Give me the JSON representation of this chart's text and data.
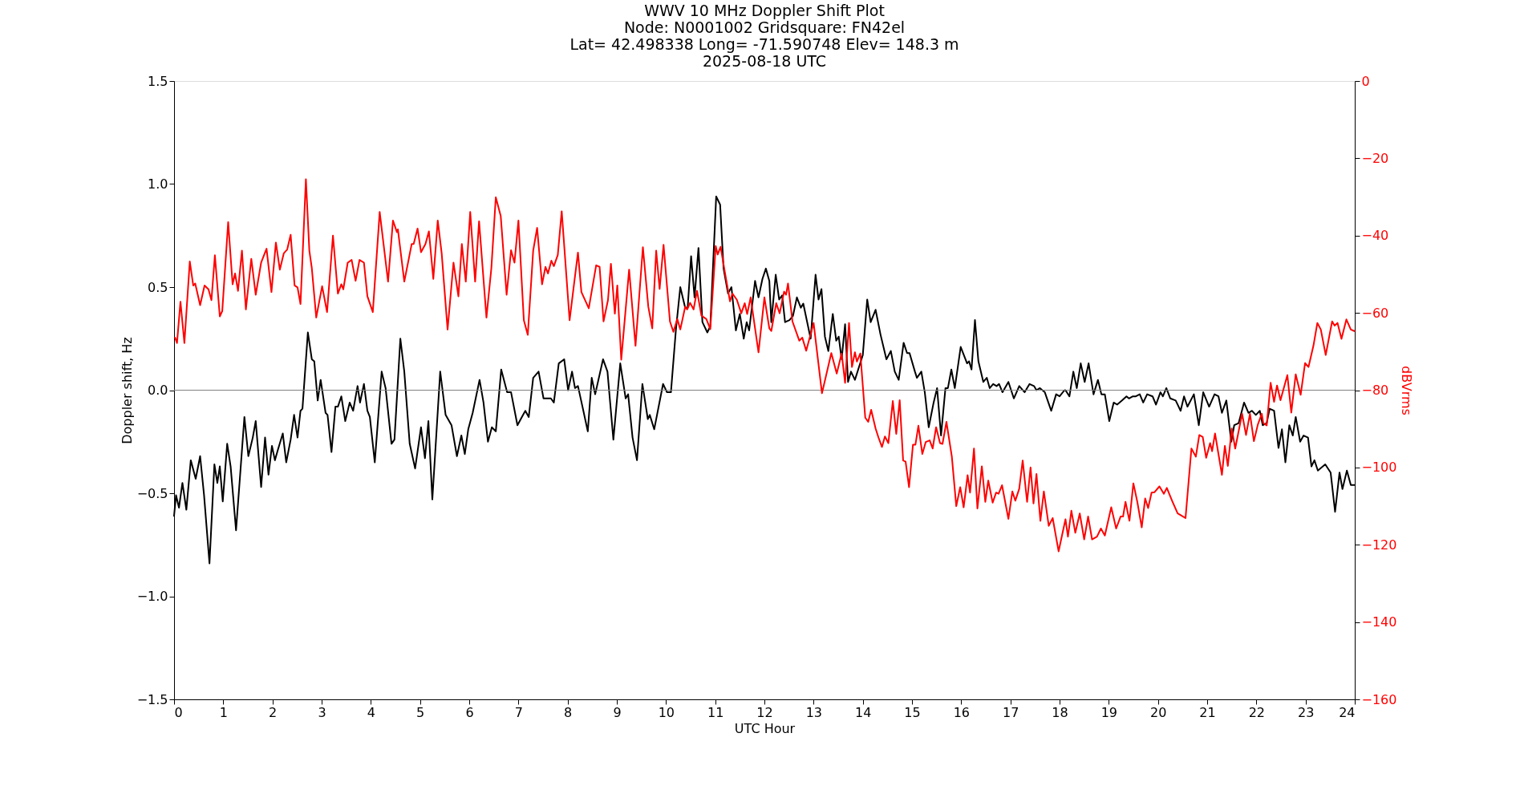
{
  "chart_data": {
    "type": "line",
    "title": "WWV 10 MHz Doppler Shift Plot\nNode:  N0001002     Gridsquare:  FN42el\nLat= 42.498338    Long= -71.590748    Elev= 148.3 m\n2025-08-18  UTC",
    "xlabel": "UTC Hour",
    "ylabel": "Doppler shift, Hz",
    "y2label": "dBVrms",
    "xlim": [
      0,
      24
    ],
    "xticks": [
      0,
      1,
      2,
      3,
      4,
      5,
      6,
      7,
      8,
      9,
      10,
      11,
      12,
      13,
      14,
      15,
      16,
      17,
      18,
      19,
      20,
      21,
      22,
      23,
      24
    ],
    "ylim": [
      -1.5,
      1.5
    ],
    "yticks": [
      {
        "value": -1.5,
        "label": "−1.5"
      },
      {
        "value": -1.0,
        "label": "−1.0"
      },
      {
        "value": -0.5,
        "label": "−0.5"
      },
      {
        "value": 0,
        "label": "0.0"
      },
      {
        "value": 0.5,
        "label": "0.5"
      },
      {
        "value": 1.0,
        "label": "1.0"
      },
      {
        "value": 1.5,
        "label": "1.5"
      }
    ],
    "y2lim": [
      -160,
      0
    ],
    "y2ticks": [
      {
        "value": -160,
        "label": "−160"
      },
      {
        "value": -140,
        "label": "−140"
      },
      {
        "value": -120,
        "label": "−120"
      },
      {
        "value": -100,
        "label": "−100"
      },
      {
        "value": -80,
        "label": "−80"
      },
      {
        "value": -60,
        "label": "−60"
      },
      {
        "value": -40,
        "label": "−40"
      },
      {
        "value": -20,
        "label": "−20"
      },
      0
    ],
    "grid": false,
    "ref_lines": [
      {
        "axis": "y",
        "value": 0,
        "color": "#808080"
      }
    ],
    "series": [
      {
        "color": "#000000",
        "x": [
          0.0,
          0.04,
          0.1,
          0.17,
          0.25,
          0.34,
          0.44,
          0.53,
          0.61,
          0.72,
          0.82,
          0.88,
          0.93,
          0.99,
          1.08,
          1.15,
          1.26,
          1.43,
          1.51,
          1.6,
          1.66,
          1.77,
          1.85,
          1.92,
          1.99,
          2.05,
          2.11,
          2.21,
          2.28,
          2.37,
          2.44,
          2.51,
          2.57,
          2.61,
          2.72,
          2.8,
          2.85,
          2.92,
          2.98,
          3.08,
          3.12,
          3.2,
          3.28,
          3.33,
          3.4,
          3.48,
          3.57,
          3.64,
          3.73,
          3.78,
          3.86,
          3.93,
          3.98,
          4.08,
          4.22,
          4.3,
          4.42,
          4.48,
          4.6,
          4.68,
          4.79,
          4.9,
          5.02,
          5.1,
          5.17,
          5.25,
          5.41,
          5.52,
          5.64,
          5.75,
          5.84,
          5.91,
          5.98,
          6.07,
          6.21,
          6.29,
          6.38,
          6.46,
          6.54,
          6.65,
          6.77,
          6.85,
          6.98,
          7.07,
          7.14,
          7.21,
          7.3,
          7.41,
          7.51,
          7.59,
          7.66,
          7.72,
          7.82,
          7.93,
          8.01,
          8.09,
          8.15,
          8.21,
          8.32,
          8.41,
          8.49,
          8.56,
          8.72,
          8.81,
          8.93,
          9.07,
          9.18,
          9.23,
          9.32,
          9.41,
          9.52,
          9.63,
          9.67,
          9.76,
          9.94,
          10.02,
          10.1,
          10.2,
          10.29,
          10.39,
          10.44,
          10.51,
          10.58,
          10.66,
          10.74,
          10.84,
          10.9,
          11.02,
          11.1,
          11.17,
          11.26,
          11.33,
          11.42,
          11.5,
          11.58,
          11.64,
          11.69,
          11.81,
          11.88,
          11.96,
          12.03,
          12.1,
          12.14,
          12.23,
          12.3,
          12.36,
          12.42,
          12.51,
          12.58,
          12.66,
          12.74,
          12.79,
          12.94,
          13.04,
          13.1,
          13.16,
          13.23,
          13.3,
          13.39,
          13.46,
          13.51,
          13.57,
          13.64,
          13.7,
          13.76,
          13.84,
          14.0,
          14.09,
          14.16,
          14.26,
          14.36,
          14.48,
          14.57,
          14.65,
          14.73,
          14.83,
          14.9,
          14.95,
          15.06,
          15.1,
          15.19,
          15.26,
          15.34,
          15.44,
          15.51,
          15.59,
          15.68,
          15.73,
          15.8,
          15.87,
          15.99,
          16.12,
          16.16,
          16.21,
          16.28,
          16.35,
          16.45,
          16.52,
          16.58,
          16.65,
          16.72,
          16.77,
          16.84,
          16.96,
          17.07,
          17.18,
          17.29,
          17.39,
          17.48,
          17.53,
          17.6,
          17.7,
          17.83,
          17.93,
          18.0,
          18.1,
          18.12,
          18.2,
          18.28,
          18.35,
          18.43,
          18.51,
          18.59,
          18.69,
          18.78,
          18.85,
          18.92,
          19.01,
          19.1,
          19.17,
          19.27,
          19.36,
          19.41,
          19.49,
          19.55,
          19.63,
          19.7,
          19.78,
          19.89,
          19.96,
          20.05,
          20.1,
          20.17,
          20.25,
          20.36,
          20.46,
          20.53,
          20.6,
          20.73,
          20.83,
          20.92,
          21.04,
          21.15,
          21.23,
          21.3,
          21.39,
          21.49,
          21.55,
          21.64,
          21.75,
          21.84,
          21.91,
          21.99,
          22.07,
          22.13,
          22.21,
          22.27,
          22.36,
          22.45,
          22.52,
          22.59,
          22.67,
          22.74,
          22.8,
          22.89,
          22.96,
          23.05,
          23.12,
          23.18,
          23.25,
          23.4,
          23.51,
          23.6,
          23.69,
          23.75,
          23.84,
          23.92,
          23.99
        ],
        "values": [
          -0.61,
          -0.51,
          -0.57,
          -0.45,
          -0.58,
          -0.34,
          -0.43,
          -0.32,
          -0.51,
          -0.84,
          -0.36,
          -0.45,
          -0.37,
          -0.54,
          -0.26,
          -0.37,
          -0.68,
          -0.13,
          -0.32,
          -0.23,
          -0.15,
          -0.47,
          -0.23,
          -0.41,
          -0.27,
          -0.34,
          -0.29,
          -0.21,
          -0.35,
          -0.24,
          -0.12,
          -0.23,
          -0.1,
          -0.09,
          0.28,
          0.15,
          0.14,
          -0.05,
          0.05,
          -0.11,
          -0.12,
          -0.3,
          -0.08,
          -0.08,
          -0.03,
          -0.15,
          -0.06,
          -0.1,
          0.02,
          -0.06,
          0.03,
          -0.1,
          -0.13,
          -0.35,
          0.09,
          0.01,
          -0.26,
          -0.24,
          0.25,
          0.09,
          -0.26,
          -0.38,
          -0.18,
          -0.33,
          -0.15,
          -0.53,
          0.09,
          -0.12,
          -0.17,
          -0.32,
          -0.22,
          -0.31,
          -0.19,
          -0.11,
          0.05,
          -0.06,
          -0.25,
          -0.18,
          -0.2,
          0.1,
          -0.01,
          -0.01,
          -0.17,
          -0.13,
          -0.1,
          -0.13,
          0.06,
          0.09,
          -0.04,
          -0.04,
          -0.04,
          -0.06,
          0.13,
          0.15,
          0.0,
          0.09,
          0.01,
          0.02,
          -0.1,
          -0.2,
          0.06,
          -0.02,
          0.15,
          0.09,
          -0.24,
          0.13,
          -0.04,
          -0.02,
          -0.23,
          -0.34,
          0.03,
          -0.14,
          -0.12,
          -0.19,
          0.03,
          -0.01,
          -0.01,
          0.29,
          0.5,
          0.4,
          0.4,
          0.65,
          0.45,
          0.69,
          0.33,
          0.28,
          0.31,
          0.94,
          0.9,
          0.59,
          0.47,
          0.5,
          0.29,
          0.37,
          0.25,
          0.33,
          0.29,
          0.53,
          0.45,
          0.54,
          0.59,
          0.53,
          0.33,
          0.56,
          0.44,
          0.46,
          0.33,
          0.34,
          0.36,
          0.45,
          0.4,
          0.42,
          0.25,
          0.56,
          0.44,
          0.49,
          0.26,
          0.19,
          0.37,
          0.24,
          0.26,
          0.15,
          0.32,
          0.04,
          0.09,
          0.05,
          0.17,
          0.44,
          0.33,
          0.39,
          0.27,
          0.15,
          0.19,
          0.09,
          0.05,
          0.23,
          0.18,
          0.18,
          0.09,
          0.06,
          0.09,
          -0.01,
          -0.18,
          -0.06,
          0.01,
          -0.22,
          0.01,
          0.01,
          0.1,
          0.01,
          0.21,
          0.13,
          0.14,
          0.1,
          0.34,
          0.14,
          0.04,
          0.06,
          0.01,
          0.03,
          0.02,
          0.03,
          -0.01,
          0.04,
          -0.04,
          0.02,
          -0.01,
          0.03,
          0.02,
          0.0,
          0.01,
          -0.01,
          -0.1,
          -0.02,
          -0.03,
          0.0,
          0.0,
          -0.03,
          0.09,
          0.01,
          0.13,
          0.04,
          0.13,
          -0.02,
          0.05,
          -0.02,
          -0.02,
          -0.15,
          -0.06,
          -0.07,
          -0.05,
          -0.03,
          -0.04,
          -0.03,
          -0.03,
          -0.02,
          -0.06,
          -0.02,
          -0.03,
          -0.07,
          -0.01,
          -0.03,
          0.01,
          -0.04,
          -0.05,
          -0.1,
          -0.03,
          -0.08,
          -0.02,
          -0.17,
          -0.01,
          -0.08,
          -0.02,
          -0.03,
          -0.11,
          -0.05,
          -0.25,
          -0.17,
          -0.16,
          -0.06,
          -0.11,
          -0.1,
          -0.12,
          -0.1,
          -0.17,
          -0.16,
          -0.09,
          -0.1,
          -0.28,
          -0.19,
          -0.35,
          -0.17,
          -0.22,
          -0.13,
          -0.25,
          -0.22,
          -0.23,
          -0.37,
          -0.34,
          -0.39,
          -0.36,
          -0.4,
          -0.59,
          -0.4,
          -0.48,
          -0.39,
          -0.46,
          -0.46
        ]
      },
      {
        "color": "#ff0000",
        "axis": "y2",
        "x": [
          0.02,
          0.06,
          0.13,
          0.21,
          0.32,
          0.39,
          0.43,
          0.53,
          0.62,
          0.7,
          0.76,
          0.83,
          0.93,
          0.98,
          1.1,
          1.19,
          1.24,
          1.3,
          1.38,
          1.46,
          1.57,
          1.66,
          1.77,
          1.88,
          1.98,
          2.07,
          2.15,
          2.23,
          2.3,
          2.37,
          2.45,
          2.51,
          2.57,
          2.68,
          2.75,
          2.8,
          2.89,
          3.01,
          3.11,
          3.23,
          3.33,
          3.4,
          3.44,
          3.53,
          3.61,
          3.69,
          3.77,
          3.86,
          3.93,
          4.04,
          4.18,
          4.35,
          4.45,
          4.53,
          4.55,
          4.68,
          4.83,
          4.87,
          4.95,
          5.02,
          5.11,
          5.18,
          5.27,
          5.36,
          5.44,
          5.56,
          5.68,
          5.78,
          5.85,
          5.93,
          6.02,
          6.12,
          6.2,
          6.35,
          6.45,
          6.54,
          6.64,
          6.76,
          6.85,
          6.92,
          7.0,
          7.11,
          7.19,
          7.3,
          7.38,
          7.48,
          7.55,
          7.6,
          7.67,
          7.72,
          7.8,
          7.88,
          8.04,
          8.12,
          8.21,
          8.28,
          8.43,
          8.58,
          8.65,
          8.73,
          8.82,
          8.88,
          8.96,
          9.01,
          9.09,
          9.25,
          9.38,
          9.53,
          9.64,
          9.72,
          9.8,
          9.87,
          9.95,
          10.08,
          10.15,
          10.23,
          10.29,
          10.39,
          10.43,
          10.49,
          10.56,
          10.63,
          10.72,
          10.82,
          10.9,
          11.01,
          11.05,
          11.11,
          11.19,
          11.3,
          11.35,
          11.44,
          11.53,
          11.6,
          11.65,
          11.72,
          11.88,
          12.0,
          12.1,
          12.14,
          12.24,
          12.31,
          12.4,
          12.44,
          12.48,
          12.57,
          12.71,
          12.77,
          12.85,
          13.0,
          13.17,
          13.36,
          13.47,
          13.57,
          13.64,
          13.72,
          13.78,
          13.84,
          13.88,
          13.95,
          14.05,
          14.11,
          14.17,
          14.26,
          14.32,
          14.39,
          14.45,
          14.52,
          14.61,
          14.68,
          14.75,
          14.82,
          14.87,
          14.94,
          15.02,
          15.07,
          15.13,
          15.21,
          15.28,
          15.36,
          15.42,
          15.49,
          15.57,
          15.62,
          15.7,
          15.81,
          15.9,
          15.98,
          16.05,
          16.13,
          16.18,
          16.26,
          16.33,
          16.42,
          16.49,
          16.55,
          16.64,
          16.71,
          16.76,
          16.83,
          16.96,
          17.04,
          17.1,
          17.18,
          17.25,
          17.34,
          17.41,
          17.47,
          17.53,
          17.61,
          17.68,
          17.78,
          17.86,
          17.98,
          18.12,
          18.17,
          18.24,
          18.32,
          18.41,
          18.5,
          18.58,
          18.66,
          18.76,
          18.84,
          18.92,
          19.05,
          19.15,
          19.24,
          19.29,
          19.34,
          19.42,
          19.5,
          19.58,
          19.67,
          19.74,
          19.8,
          19.87,
          19.93,
          20.03,
          20.12,
          20.18,
          20.29,
          20.4,
          20.47,
          20.56,
          20.68,
          20.77,
          20.84,
          20.91,
          20.98,
          21.06,
          21.1,
          21.16,
          21.3,
          21.36,
          21.42,
          21.5,
          21.57,
          21.71,
          21.79,
          21.87,
          21.95,
          22.03,
          22.11,
          22.14,
          22.21,
          22.29,
          22.36,
          22.42,
          22.49,
          22.63,
          22.71,
          22.8,
          22.9,
          22.99,
          23.06,
          23.16,
          23.24,
          23.31,
          23.41,
          23.54,
          23.59,
          23.65,
          23.73,
          23.83,
          23.92,
          23.99
        ],
        "values": [
          -66.4,
          -67.8,
          -57.1,
          -67.8,
          -46.7,
          -52.9,
          -52.4,
          -58.0,
          -52.9,
          -53.9,
          -56.7,
          -45.1,
          -60.9,
          -59.5,
          -36.5,
          -52.6,
          -49.8,
          -54.3,
          -43.9,
          -59.1,
          -46.0,
          -55.3,
          -47.0,
          -43.4,
          -54.6,
          -41.8,
          -48.8,
          -44.6,
          -43.6,
          -39.8,
          -52.9,
          -53.4,
          -57.7,
          -25.4,
          -43.9,
          -48.4,
          -61.2,
          -53.1,
          -59.8,
          -40.0,
          -55.0,
          -52.6,
          -53.9,
          -47.0,
          -46.3,
          -51.7,
          -46.3,
          -47.0,
          -55.7,
          -59.8,
          -33.9,
          -51.9,
          -36.1,
          -39.1,
          -38.4,
          -51.9,
          -42.2,
          -42.2,
          -38.2,
          -44.3,
          -42.2,
          -38.9,
          -51.2,
          -36.1,
          -44.6,
          -64.3,
          -47.0,
          -55.7,
          -42.2,
          -51.9,
          -33.9,
          -51.9,
          -36.3,
          -61.2,
          -48.4,
          -30.1,
          -34.9,
          -55.3,
          -43.8,
          -47.0,
          -36.1,
          -61.9,
          -65.7,
          -43.9,
          -38.0,
          -52.6,
          -48.1,
          -49.8,
          -46.5,
          -47.9,
          -45.0,
          -33.7,
          -61.9,
          -53.6,
          -44.4,
          -54.6,
          -58.8,
          -47.7,
          -48.1,
          -62.2,
          -56.7,
          -47.3,
          -60.2,
          -52.9,
          -72.1,
          -48.8,
          -68.5,
          -43.0,
          -58.4,
          -64.0,
          -43.9,
          -53.8,
          -42.4,
          -62.2,
          -64.9,
          -61.6,
          -64.3,
          -58.4,
          -59.1,
          -57.4,
          -59.1,
          -54.3,
          -60.7,
          -61.6,
          -64.2,
          -42.7,
          -44.9,
          -42.9,
          -49.0,
          -57.0,
          -55.0,
          -56.6,
          -60.1,
          -57.5,
          -60.3,
          -56.0,
          -70.2,
          -56.0,
          -64.0,
          -64.7,
          -57.5,
          -60.1,
          -54.5,
          -55.3,
          -52.4,
          -62.2,
          -67.2,
          -66.4,
          -69.8,
          -62.6,
          -80.8,
          -70.4,
          -75.7,
          -70.5,
          -78.1,
          -62.6,
          -74.0,
          -70.2,
          -72.6,
          -70.5,
          -87.1,
          -88.2,
          -85.1,
          -89.9,
          -92.3,
          -94.7,
          -92.0,
          -93.7,
          -82.8,
          -91.3,
          -82.6,
          -98.2,
          -98.5,
          -105.1,
          -94.1,
          -94.1,
          -89.2,
          -96.5,
          -93.4,
          -93.0,
          -95.1,
          -89.6,
          -93.7,
          -93.9,
          -88.2,
          -97.2,
          -110.0,
          -105.1,
          -110.3,
          -102.0,
          -106.5,
          -95.1,
          -110.6,
          -99.7,
          -108.9,
          -103.4,
          -109.1,
          -106.5,
          -106.8,
          -104.6,
          -113.3,
          -106.2,
          -108.6,
          -105.5,
          -98.2,
          -108.9,
          -100.0,
          -109.3,
          -101.7,
          -113.8,
          -106.2,
          -115.1,
          -113.1,
          -121.7,
          -113.4,
          -117.9,
          -111.2,
          -116.9,
          -111.9,
          -118.6,
          -112.7,
          -118.6,
          -117.9,
          -115.8,
          -117.6,
          -110.3,
          -115.8,
          -112.7,
          -112.7,
          -108.9,
          -113.8,
          -104.1,
          -108.9,
          -115.5,
          -108.0,
          -110.5,
          -106.5,
          -106.4,
          -104.9,
          -106.8,
          -105.3,
          -108.7,
          -111.9,
          -112.4,
          -113.1,
          -95.1,
          -97.2,
          -91.6,
          -92.1,
          -97.5,
          -93.7,
          -95.8,
          -91.2,
          -101.9,
          -94.4,
          -99.6,
          -89.9,
          -95.1,
          -86.1,
          -91.6,
          -86.1,
          -93.2,
          -88.9,
          -86.1,
          -88.5,
          -89.1,
          -78.1,
          -83.0,
          -78.8,
          -82.6,
          -76.1,
          -85.8,
          -75.9,
          -81.2,
          -73.0,
          -74.0,
          -68.5,
          -62.6,
          -64.3,
          -70.9,
          -62.2,
          -63.3,
          -62.6,
          -66.7,
          -61.7,
          -64.3,
          -64.7
        ]
      }
    ]
  }
}
